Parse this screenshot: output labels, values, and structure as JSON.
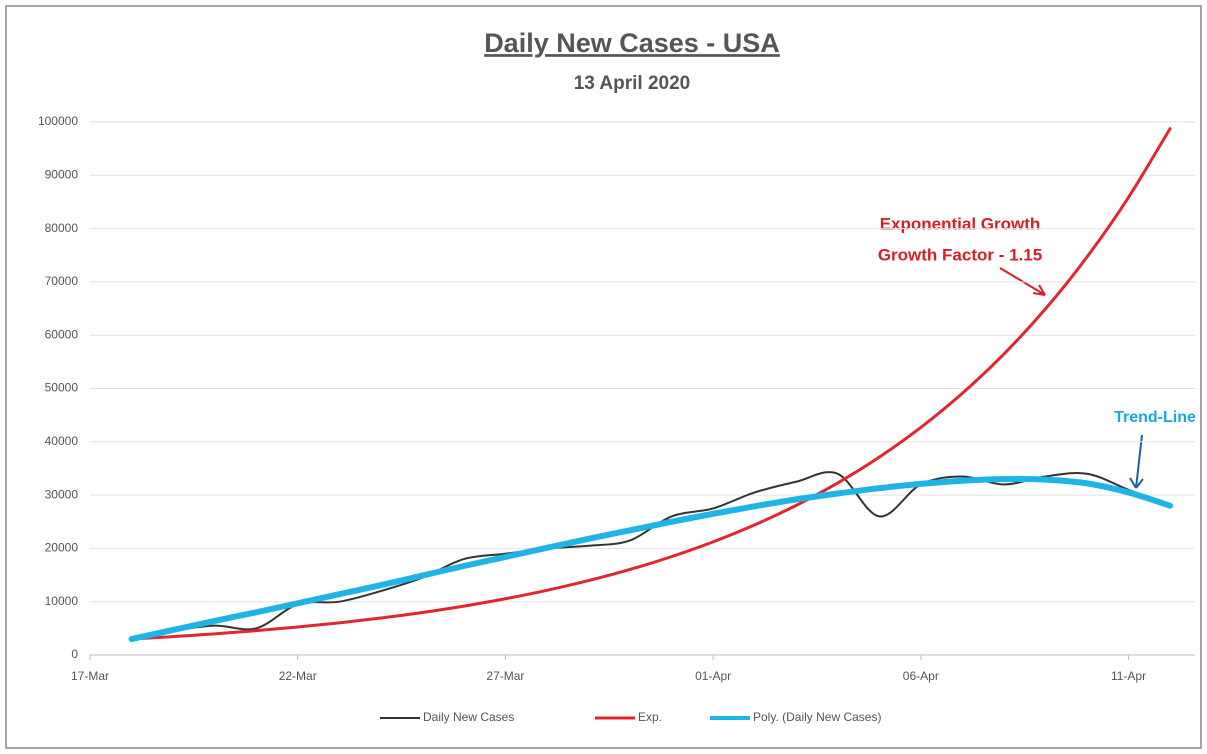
{
  "chart_data": {
    "type": "line",
    "title": "Daily New Cases - USA",
    "subtitle": "13 April 2020",
    "x": [
      1,
      2,
      3,
      4,
      5,
      6,
      7,
      8,
      9,
      10,
      11,
      12,
      13,
      14,
      15,
      16,
      17,
      18,
      19,
      20,
      21,
      22,
      23,
      24,
      25,
      26
    ],
    "xlim": [
      0,
      26.6
    ],
    "xticks": [
      {
        "value": 0,
        "label": "17-Mar"
      },
      {
        "value": 5,
        "label": "22-Mar"
      },
      {
        "value": 10,
        "label": "27-Mar"
      },
      {
        "value": 15,
        "label": "01-Apr"
      },
      {
        "value": 20,
        "label": "06-Apr"
      },
      {
        "value": 25,
        "label": "11-Apr"
      }
    ],
    "ylim": [
      0,
      100000
    ],
    "yticks": [
      0,
      10000,
      20000,
      30000,
      40000,
      50000,
      60000,
      70000,
      80000,
      90000,
      100000
    ],
    "grid": true,
    "legend": "bottom",
    "series": [
      {
        "name": "Daily New Cases",
        "color": "#333333",
        "width": 2,
        "values": [
          3000,
          4500,
          5500,
          5000,
          9500,
          10000,
          12000,
          14500,
          18000,
          19000,
          20000,
          20500,
          21500,
          26000,
          27500,
          30500,
          32500,
          34000,
          26000,
          32000,
          33500,
          32000,
          33500,
          34000,
          31000,
          28000
        ]
      },
      {
        "name": "Exp.",
        "color": "#e0262f",
        "width": 3,
        "values": [
          3000,
          3450,
          3968,
          4563,
          5247,
          6034,
          6939,
          7980,
          9177,
          10554,
          12137,
          13958,
          16051,
          18459,
          21228,
          24412,
          28074,
          32285,
          37128,
          42697,
          49102,
          56467,
          64937,
          74678,
          85879,
          98761
        ]
      },
      {
        "name": "Poly. (Daily New Cases)",
        "color": "#1fb4e8",
        "width": 6,
        "values": [
          3000,
          4700,
          6400,
          8000,
          9700,
          11400,
          13100,
          14900,
          16700,
          18400,
          20100,
          21800,
          23400,
          25000,
          26500,
          27900,
          29200,
          30300,
          31300,
          32100,
          32700,
          33000,
          32900,
          32200,
          30500,
          28000
        ]
      }
    ],
    "annotations": [
      {
        "text": "Exponential Growth",
        "color": "#d4202a"
      },
      {
        "text": "Growth Factor - 1.15",
        "color": "#d4202a"
      },
      {
        "text": "Trend-Line",
        "color": "#1aa8dc"
      }
    ]
  }
}
